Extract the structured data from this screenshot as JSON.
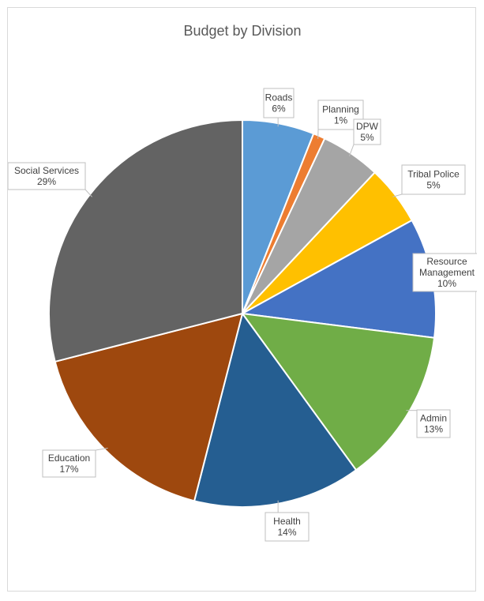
{
  "chart_data": {
    "type": "pie",
    "title": "Budget by Division",
    "slices": [
      {
        "label": "Roads",
        "value": 6,
        "display": "6%",
        "color": "#5b9bd5"
      },
      {
        "label": "Planning",
        "value": 1,
        "display": "1%",
        "color": "#ed7d31"
      },
      {
        "label": "DPW",
        "value": 5,
        "display": "5%",
        "color": "#a5a5a5"
      },
      {
        "label": "Tribal Police",
        "value": 5,
        "display": "5%",
        "color": "#ffc000"
      },
      {
        "label": "Resource Management",
        "value": 10,
        "display": "10%",
        "color": "#4472c4"
      },
      {
        "label": "Admin",
        "value": 13,
        "display": "13%",
        "color": "#70ad47"
      },
      {
        "label": "Health",
        "value": 14,
        "display": "14%",
        "color": "#255e91"
      },
      {
        "label": "Education",
        "value": 17,
        "display": "17%",
        "color": "#9e480e"
      },
      {
        "label": "Social Services",
        "value": 29,
        "display": "29%",
        "color": "#636363"
      }
    ],
    "legend": "none",
    "data_labels": "callouts-outside"
  }
}
